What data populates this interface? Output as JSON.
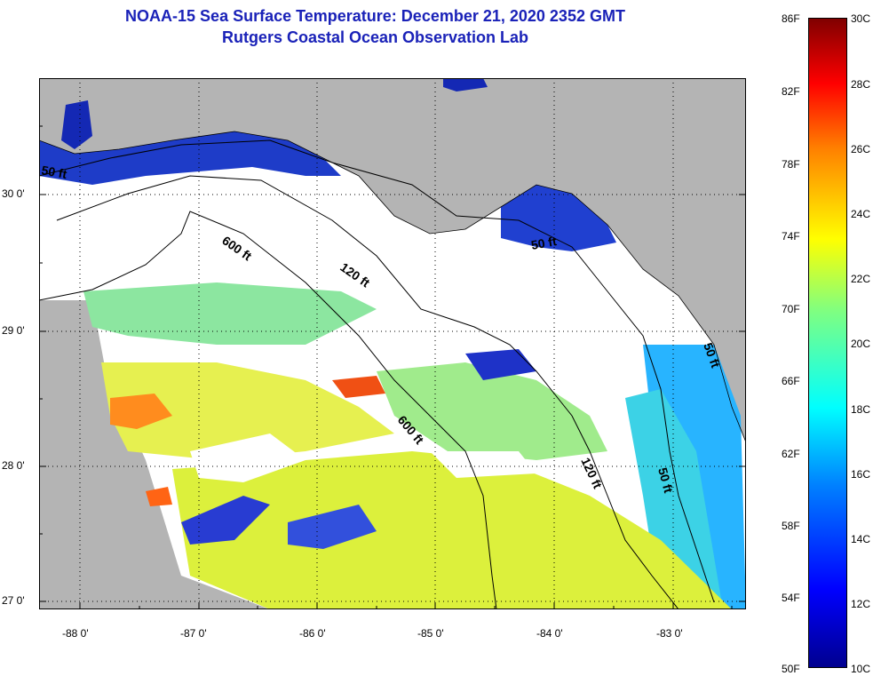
{
  "title": {
    "line1": "NOAA-15 Sea Surface Temperature:  December 21, 2020 2352 GMT",
    "line2": "Rutgers Coastal Ocean Observation Lab"
  },
  "map": {
    "x_tick_labels": [
      "-88 0'",
      "-87 0'",
      "-86 0'",
      "-85 0'",
      "-84 0'",
      "-83 0'"
    ],
    "y_tick_labels": [
      "30 0'",
      "29 0'",
      "28 0'",
      "27 0'"
    ],
    "contour_labels": [
      "50 ft",
      "600 ft",
      "120 ft",
      "50 ft",
      "600 ft",
      "120 ft",
      "50 ft",
      "50 ft"
    ],
    "colors": {
      "land": "#b4b4b4",
      "cloud": "#ffffff",
      "frame": "#000000"
    }
  },
  "colorbar": {
    "left_labels": [
      "86F",
      "82F",
      "78F",
      "74F",
      "70F",
      "66F",
      "62F",
      "58F",
      "54F",
      "50F"
    ],
    "right_labels": [
      "30C",
      "28C",
      "26C",
      "24C",
      "22C",
      "20C",
      "18C",
      "16C",
      "14C",
      "12C",
      "10C"
    ]
  }
}
